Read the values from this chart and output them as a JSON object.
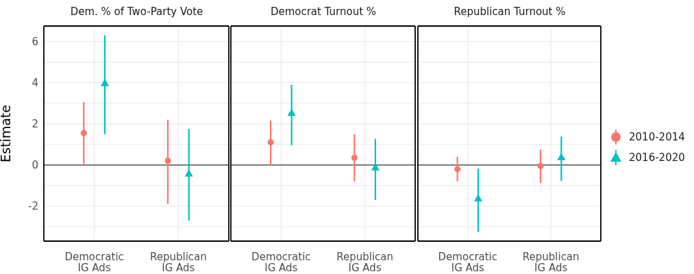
{
  "chart_data": [
    {
      "type": "scatter",
      "title": "Dem. % of Two-Party Vote",
      "ylabel": "Estimate",
      "categories": [
        "Democratic IG Ads",
        "Republican IG Ads"
      ],
      "ylim": [
        -3.7,
        6.75
      ],
      "yticks": [
        {
          "value": -3,
          "label": null
        },
        -2,
        {
          "value": -1,
          "label": null
        },
        0,
        {
          "value": 1,
          "label": null
        },
        2,
        {
          "value": 3,
          "label": null
        },
        4,
        {
          "value": 5,
          "label": null
        },
        6
      ],
      "grid": true,
      "ref_lines": [
        {
          "axis": "y",
          "value": 0,
          "color": "#333333"
        }
      ],
      "series": [
        {
          "color": "#f8766d",
          "marker": "circle",
          "values": [
            1.55,
            0.2
          ],
          "errors": [
            [
              0.05,
              3.05
            ],
            [
              -1.9,
              2.2
            ]
          ]
        },
        {
          "color": "#00bfc4",
          "marker": "triangle",
          "values": [
            3.95,
            -0.45
          ],
          "errors": [
            [
              1.5,
              6.3
            ],
            [
              -2.7,
              1.75
            ]
          ]
        }
      ]
    },
    {
      "type": "scatter",
      "title": "Democrat Turnout %",
      "categories": [
        "Democratic IG Ads",
        "Republican IG Ads"
      ],
      "ylim": [
        -3.7,
        6.75
      ],
      "yticks": [
        {
          "value": -3,
          "label": null
        },
        -2,
        {
          "value": -1,
          "label": null
        },
        0,
        {
          "value": 1,
          "label": null
        },
        2,
        {
          "value": 3,
          "label": null
        },
        4,
        {
          "value": 5,
          "label": null
        },
        6
      ],
      "tick_labels": "x",
      "grid": true,
      "ref_lines": [
        {
          "axis": "y",
          "value": 0,
          "color": "#333333"
        }
      ],
      "series": [
        {
          "color": "#f8766d",
          "marker": "circle",
          "values": [
            1.1,
            0.35
          ],
          "errors": [
            [
              0.0,
              2.15
            ],
            [
              -0.8,
              1.5
            ]
          ]
        },
        {
          "color": "#00bfc4",
          "marker": "triangle",
          "values": [
            2.5,
            -0.15
          ],
          "errors": [
            [
              0.95,
              3.9
            ],
            [
              -1.7,
              1.27
            ]
          ]
        }
      ]
    },
    {
      "type": "scatter",
      "title": "Republican Turnout %",
      "categories": [
        "Democratic IG Ads",
        "Republican IG Ads"
      ],
      "ylim": [
        -3.7,
        6.75
      ],
      "yticks": [
        {
          "value": -3,
          "label": null
        },
        -2,
        {
          "value": -1,
          "label": null
        },
        0,
        {
          "value": 1,
          "label": null
        },
        2,
        {
          "value": 3,
          "label": null
        },
        4,
        {
          "value": 5,
          "label": null
        },
        6
      ],
      "tick_labels": "x",
      "grid": true,
      "legend": "right",
      "ref_lines": [
        {
          "axis": "y",
          "value": 0,
          "color": "#333333"
        }
      ],
      "series": [
        {
          "name": "2010-2014",
          "color": "#f8766d",
          "marker": "circle",
          "values": [
            -0.2,
            -0.05
          ],
          "errors": [
            [
              -0.8,
              0.4
            ],
            [
              -0.87,
              0.75
            ]
          ]
        },
        {
          "name": "2016-2020",
          "color": "#00bfc4",
          "marker": "triangle",
          "values": [
            -1.65,
            0.35
          ],
          "errors": [
            [
              -3.25,
              -0.18
            ],
            [
              -0.78,
              1.38
            ]
          ]
        }
      ]
    }
  ]
}
